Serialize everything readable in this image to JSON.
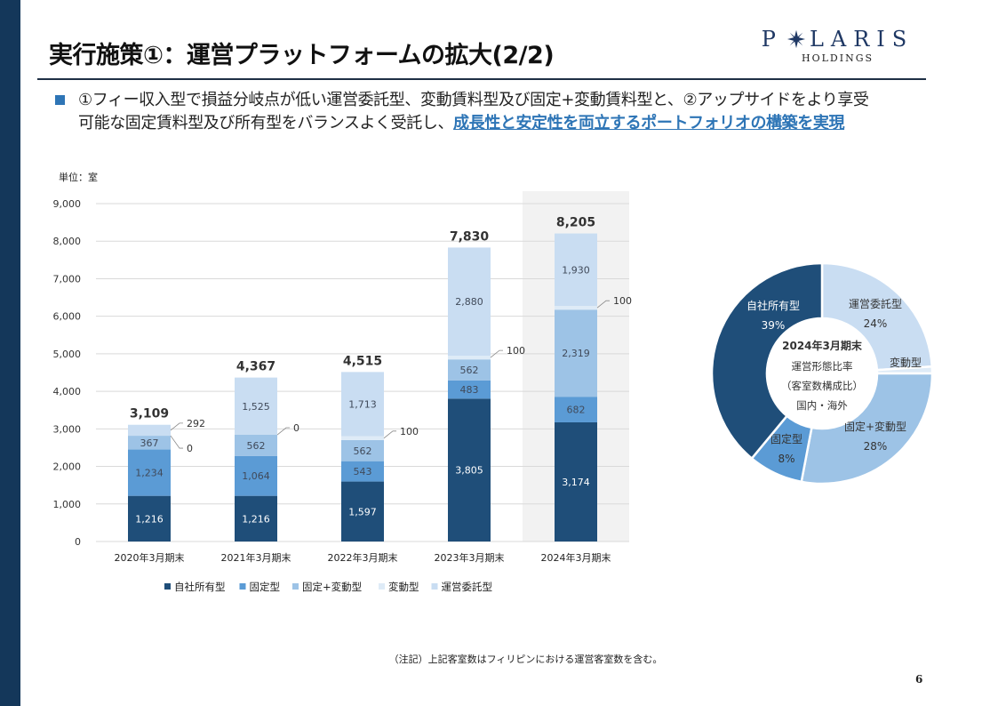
{
  "header": {
    "title": "実行施策①：運営プラットフォームの拡大(2/2)",
    "logo_main_left": "P",
    "logo_main_right": "LARIS",
    "logo_sub": "HOLDINGS"
  },
  "bullet": {
    "text_line1": "①フィー収入型で損益分岐点が低い運営委託型、変動賃料型及び固定+変動賃料型と、②アップサイドをより享受",
    "text_line2_plain": "可能な固定賃料型及び所有型をバランスよく受託し、",
    "text_line2_highlight": "成長性と安定性を両立するポートフォリオの構築を実現"
  },
  "unit_label": "単位：室",
  "colors": {
    "own": "#1f4e79",
    "fixed": "#5b9bd5",
    "fixed_variable": "#9dc3e6",
    "variable": "#deebf7",
    "management": "#c9ddf2",
    "sidebar": "#14375a",
    "accent": "#2e75b6",
    "highlight_bg": "#f2f2f2"
  },
  "chart_data": [
    {
      "type": "bar",
      "stacked": true,
      "title": "",
      "xlabel": "",
      "ylabel": "単位：室",
      "ylim": [
        0,
        9000
      ],
      "yticks": [
        0,
        1000,
        2000,
        3000,
        4000,
        5000,
        6000,
        7000,
        8000,
        9000
      ],
      "ytick_labels": [
        "0",
        "1,000",
        "2,000",
        "3,000",
        "4,000",
        "5,000",
        "6,000",
        "7,000",
        "8,000",
        "9,000"
      ],
      "grid": true,
      "categories": [
        "2020年3月期末",
        "2021年3月期末",
        "2022年3月期末",
        "2023年3月期末",
        "2024年3月期末"
      ],
      "highlight_category": "2024年3月期末",
      "series": [
        {
          "name": "自社所有型",
          "key": "own",
          "values": [
            1216,
            1216,
            1597,
            3805,
            3174
          ],
          "labels": [
            "1,216",
            "1,216",
            "1,597",
            "3,805",
            "3,174"
          ]
        },
        {
          "name": "固定型",
          "key": "fixed",
          "values": [
            1234,
            1064,
            543,
            483,
            682
          ],
          "labels": [
            "1,234",
            "1,064",
            "543",
            "483",
            "682"
          ]
        },
        {
          "name": "固定+変動型",
          "key": "fixed_variable",
          "values": [
            367,
            562,
            562,
            562,
            2319
          ],
          "labels": [
            "367",
            "562",
            "562",
            "562",
            "2,319"
          ]
        },
        {
          "name": "変動型",
          "key": "variable",
          "values": [
            0,
            0,
            100,
            100,
            100
          ],
          "labels": [
            "0",
            "0",
            "100",
            "100",
            "100"
          ]
        },
        {
          "name": "運営委託型",
          "key": "management",
          "values": [
            292,
            1525,
            1713,
            2880,
            1930
          ],
          "labels": [
            "292",
            "1,525",
            "1,713",
            "2,880",
            "1,930"
          ]
        }
      ],
      "totals": [
        3109,
        4367,
        4515,
        7830,
        8205
      ],
      "total_labels": [
        "3,109",
        "4,367",
        "4,515",
        "7,830",
        "8,205"
      ],
      "legend_position": "bottom"
    },
    {
      "type": "pie",
      "donut": true,
      "center_text": [
        "2024年3月期末",
        "運営形態比率",
        "（客室数構成比）",
        "国内・海外"
      ],
      "slices": [
        {
          "name": "運営委託型",
          "key": "management",
          "value": 24,
          "label": "24%"
        },
        {
          "name": "変動型",
          "key": "variable",
          "value": 1,
          "label": "1%"
        },
        {
          "name": "固定+変動型",
          "key": "fixed_variable",
          "value": 28,
          "label": "28%"
        },
        {
          "name": "固定型",
          "key": "fixed",
          "value": 8,
          "label": "8%"
        },
        {
          "name": "自社所有型",
          "key": "own",
          "value": 39,
          "label": "39%"
        }
      ]
    }
  ],
  "footer": {
    "note": "（注記）上記客室数はフィリピンにおける運営客室数を含む。",
    "page_number": "6"
  }
}
